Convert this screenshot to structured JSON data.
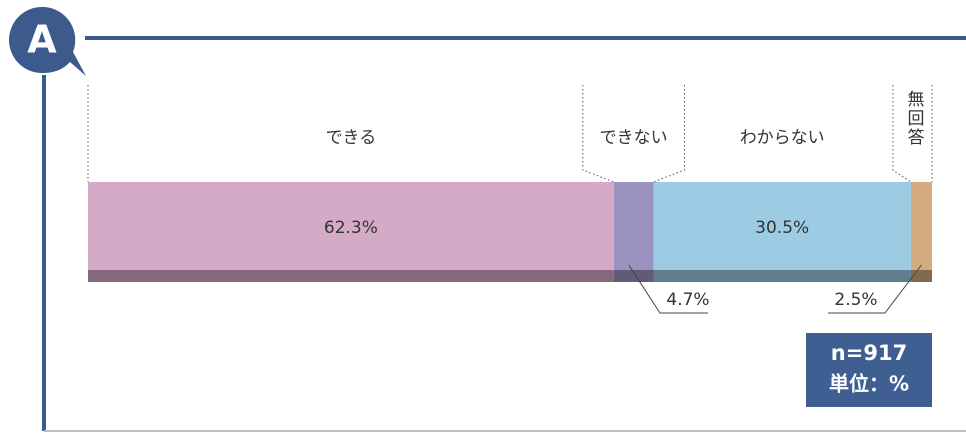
{
  "chart_data": {
    "type": "bar",
    "orientation": "horizontal",
    "stacked": true,
    "badge": "A",
    "notes": [
      "n=917",
      "単位：%"
    ],
    "xlim": [
      0,
      100
    ],
    "series": [
      {
        "name": "できる",
        "color": "#d4aac6",
        "values": [
          62.3
        ],
        "value_labels": [
          "62.3%"
        ]
      },
      {
        "name": "できない",
        "color": "#9b93bf",
        "values": [
          4.7
        ],
        "value_labels": [
          "4.7%"
        ]
      },
      {
        "name": "わからない",
        "color": "#9dcbe3",
        "values": [
          30.5
        ],
        "value_labels": [
          "30.5%"
        ]
      },
      {
        "name": "無回答",
        "color": "#d3ab7f",
        "values": [
          2.5
        ],
        "value_labels": [
          "2.5%"
        ]
      }
    ]
  }
}
